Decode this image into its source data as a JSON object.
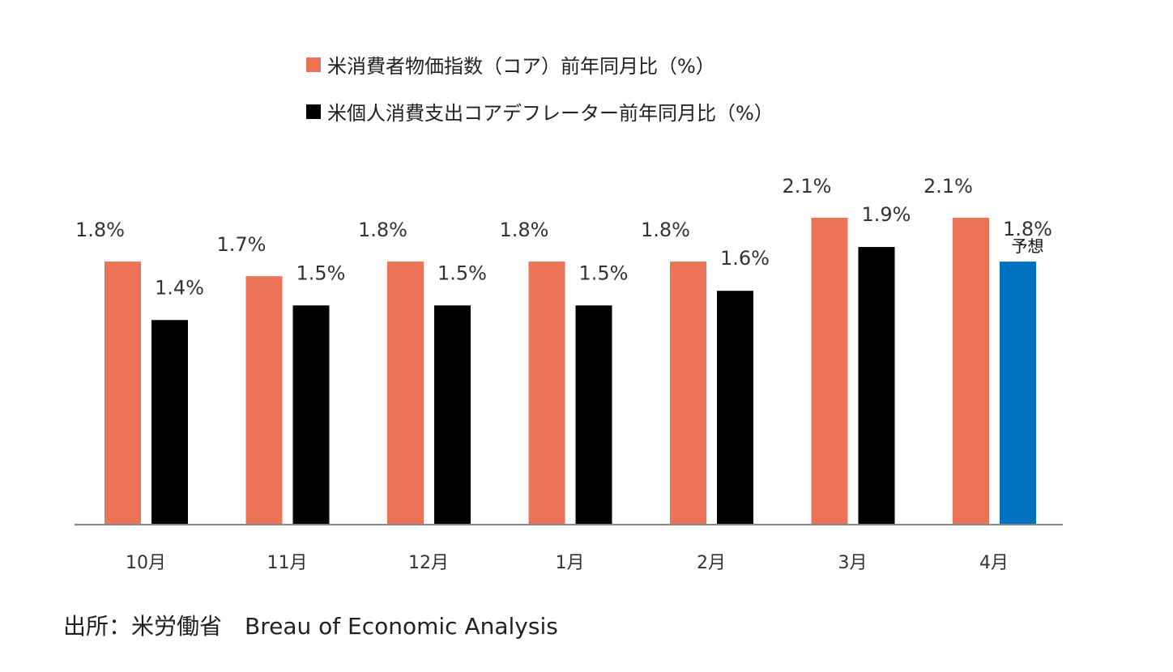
{
  "legend": {
    "series1": "米消費者物価指数（コア）前年同月比（%）",
    "series2": "米個人消費支出コアデフレーター前年同月比（%）"
  },
  "source": "出所：米労働省　Breau of Economic Analysis",
  "colors": {
    "cpi": "#ec7357",
    "pce": "#000000",
    "forecast": "#0070c0",
    "axis": "#888888",
    "text": "#333333"
  },
  "chart_data": {
    "type": "bar",
    "categories": [
      "10月",
      "11月",
      "12月",
      "1月",
      "2月",
      "3月",
      "4月"
    ],
    "series": [
      {
        "name": "米消費者物価指数（コア）前年同月比（%）",
        "values": [
          1.8,
          1.7,
          1.8,
          1.8,
          1.8,
          2.1,
          2.1
        ],
        "labels": [
          "1.8%",
          "1.7%",
          "1.8%",
          "1.8%",
          "1.8%",
          "2.1%",
          "2.1%"
        ]
      },
      {
        "name": "米個人消費支出コアデフレーター前年同月比（%）",
        "values": [
          1.4,
          1.5,
          1.5,
          1.5,
          1.6,
          1.9,
          1.8
        ],
        "labels": [
          "1.4%",
          "1.5%",
          "1.5%",
          "1.5%",
          "1.6%",
          "1.9%",
          "1.8%"
        ]
      }
    ],
    "annotations": [
      {
        "category": "4月",
        "series": 2,
        "text": "予想"
      }
    ],
    "ylim": [
      0,
      2.1
    ],
    "grid": false,
    "legend_position": "top"
  }
}
